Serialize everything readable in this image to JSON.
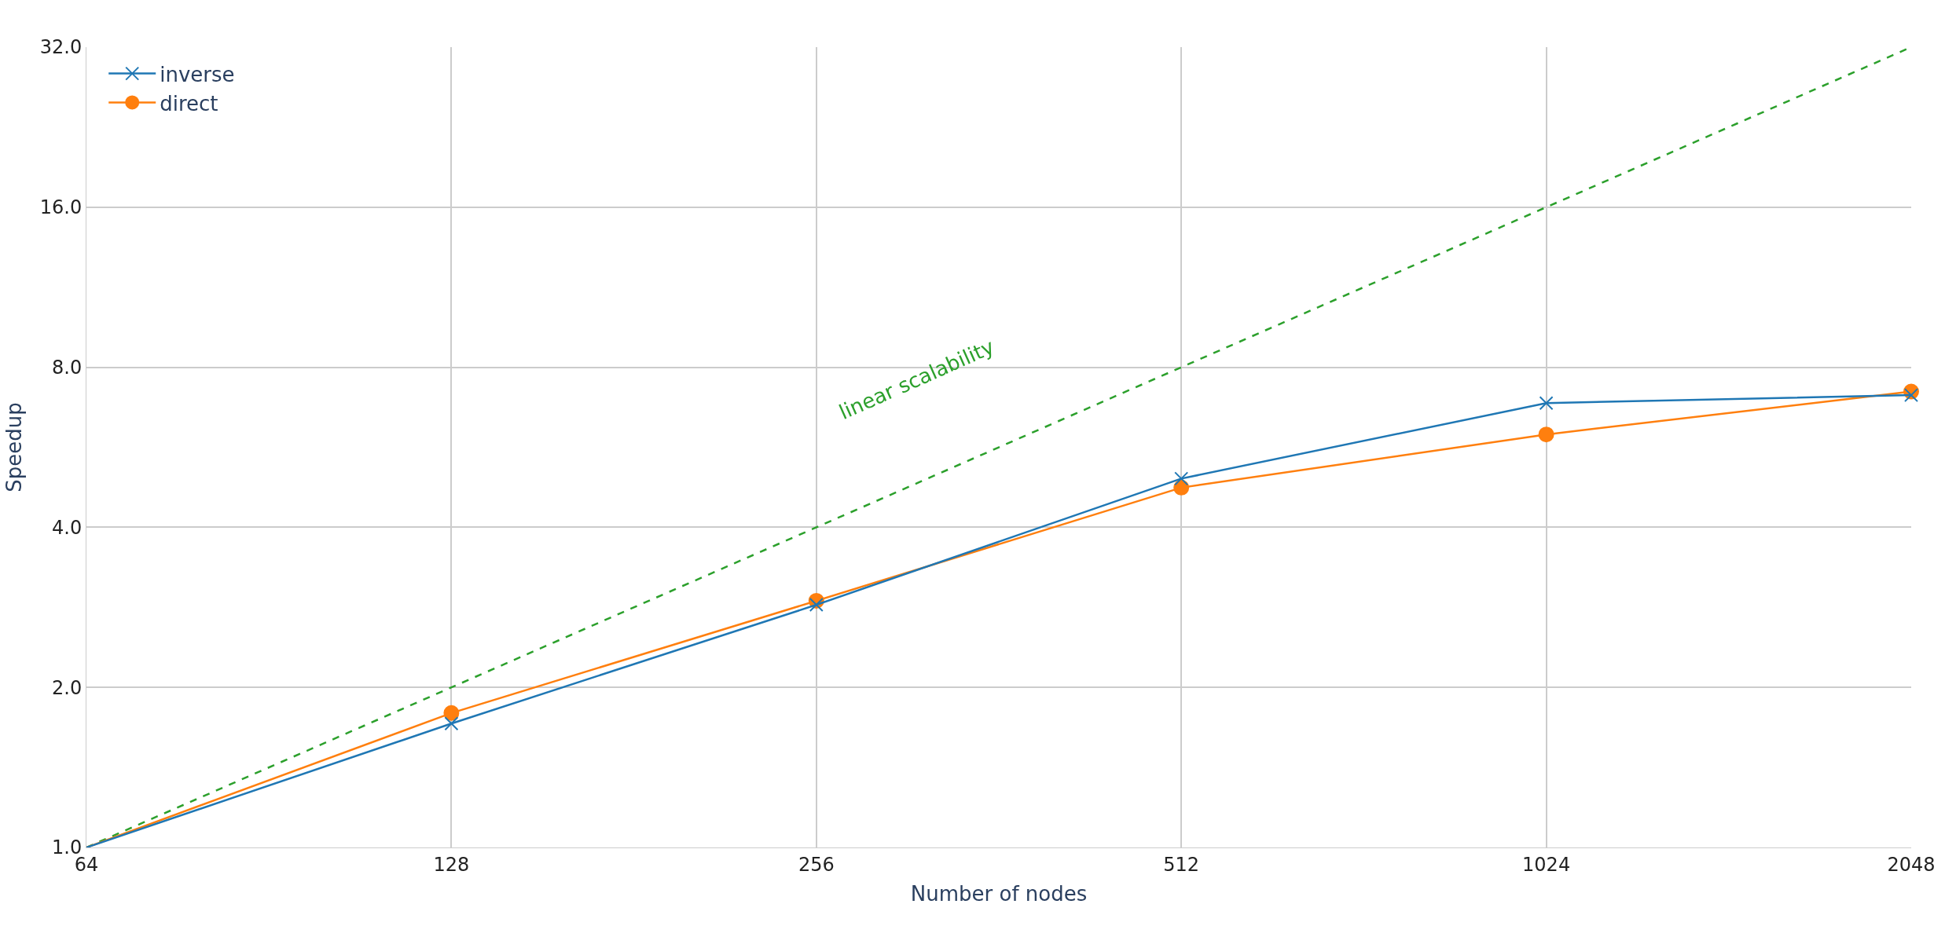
{
  "chart_data": {
    "type": "line",
    "xlabel": "Number of nodes",
    "ylabel": "Speedup",
    "x": [
      64,
      128,
      256,
      512,
      1024,
      2048
    ],
    "series": [
      {
        "name": "inverse",
        "color": "#1f77b4",
        "marker": "cross",
        "values": [
          1.0,
          1.71,
          2.86,
          4.94,
          6.85,
          7.09
        ]
      },
      {
        "name": "direct",
        "color": "#ff7f0e",
        "marker": "circle",
        "values": [
          1.0,
          1.79,
          2.91,
          4.75,
          5.98,
          7.2
        ]
      },
      {
        "color": "#2ca02c",
        "marker": "none",
        "line_style": "dashed",
        "values": [
          1,
          2,
          4,
          8,
          16,
          32
        ]
      }
    ],
    "annotations": [
      "linear scalability"
    ],
    "log": "xy",
    "xlim": [
      64,
      2048
    ],
    "ylim": [
      1,
      32
    ],
    "xticks": [
      64,
      128,
      256,
      512,
      1024,
      2048
    ],
    "yticks": [
      {
        "value": 1,
        "label": "1.0"
      },
      {
        "value": 2,
        "label": "2.0"
      },
      {
        "value": 4,
        "label": "4.0"
      },
      {
        "value": 8,
        "label": "8.0"
      },
      {
        "value": 16,
        "label": "16.0"
      },
      {
        "value": 32,
        "label": "32.0"
      }
    ],
    "grid": true,
    "legend": "top left",
    "line_style": "solid"
  }
}
